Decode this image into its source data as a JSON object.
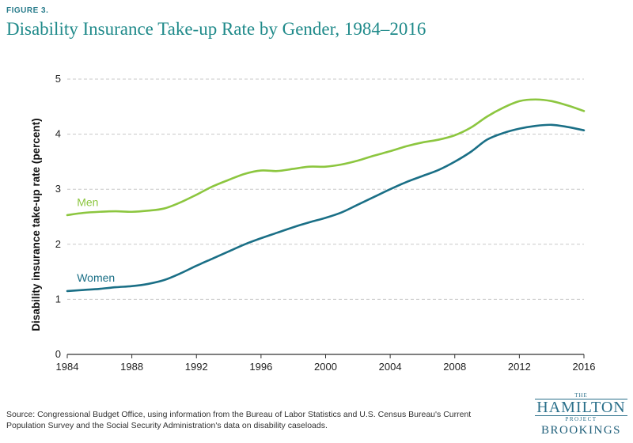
{
  "figure_label": "FIGURE 3.",
  "title": "Disability Insurance Take-up Rate by Gender, 1984–2016",
  "source": "Source: Congressional Budget Office, using information from the Bureau of Labor Statistics and U.S. Census Bureau's Current Population Survey and the Social Security Administration's data on disability caseloads.",
  "logo": {
    "the": "THE",
    "hamilton": "HAMILTON",
    "project": "PROJECT",
    "brookings": "BROOKINGS"
  },
  "colors": {
    "men": "#8cc63f",
    "women": "#1a6f86",
    "grid": "#c8c8c8",
    "title": "#1f8a8a"
  },
  "chart_data": {
    "type": "line",
    "ylabel": "Disability insurance take-up rate (percent)",
    "xlabel": "",
    "xlim": [
      1984,
      2016
    ],
    "ylim": [
      0,
      5
    ],
    "x_ticks": [
      1984,
      1988,
      1992,
      1996,
      2000,
      2004,
      2008,
      2012,
      2016
    ],
    "y_ticks": [
      0,
      1,
      2,
      3,
      4,
      5
    ],
    "grid": "horizontal dashed",
    "series": [
      {
        "name": "Men",
        "color": "#8cc63f",
        "x": [
          1984,
          1985,
          1986,
          1987,
          1988,
          1989,
          1990,
          1991,
          1992,
          1993,
          1994,
          1995,
          1996,
          1997,
          1998,
          1999,
          2000,
          2001,
          2002,
          2003,
          2004,
          2005,
          2006,
          2007,
          2008,
          2009,
          2010,
          2011,
          2012,
          2013,
          2014,
          2015,
          2016
        ],
        "y": [
          2.53,
          2.57,
          2.59,
          2.6,
          2.59,
          2.61,
          2.65,
          2.76,
          2.9,
          3.05,
          3.17,
          3.28,
          3.34,
          3.33,
          3.37,
          3.41,
          3.41,
          3.45,
          3.52,
          3.61,
          3.69,
          3.78,
          3.85,
          3.9,
          3.98,
          4.12,
          4.32,
          4.48,
          4.6,
          4.63,
          4.6,
          4.52,
          4.42
        ]
      },
      {
        "name": "Women",
        "color": "#1a6f86",
        "x": [
          1984,
          1985,
          1986,
          1987,
          1988,
          1989,
          1990,
          1991,
          1992,
          1993,
          1994,
          1995,
          1996,
          1997,
          1998,
          1999,
          2000,
          2001,
          2002,
          2003,
          2004,
          2005,
          2006,
          2007,
          2008,
          2009,
          2010,
          2011,
          2012,
          2013,
          2014,
          2015,
          2016
        ],
        "y": [
          1.15,
          1.17,
          1.19,
          1.22,
          1.24,
          1.28,
          1.35,
          1.47,
          1.61,
          1.74,
          1.87,
          2.0,
          2.11,
          2.21,
          2.31,
          2.4,
          2.48,
          2.58,
          2.72,
          2.86,
          3.0,
          3.13,
          3.24,
          3.35,
          3.5,
          3.68,
          3.9,
          4.02,
          4.1,
          4.15,
          4.17,
          4.13,
          4.07
        ]
      }
    ]
  }
}
